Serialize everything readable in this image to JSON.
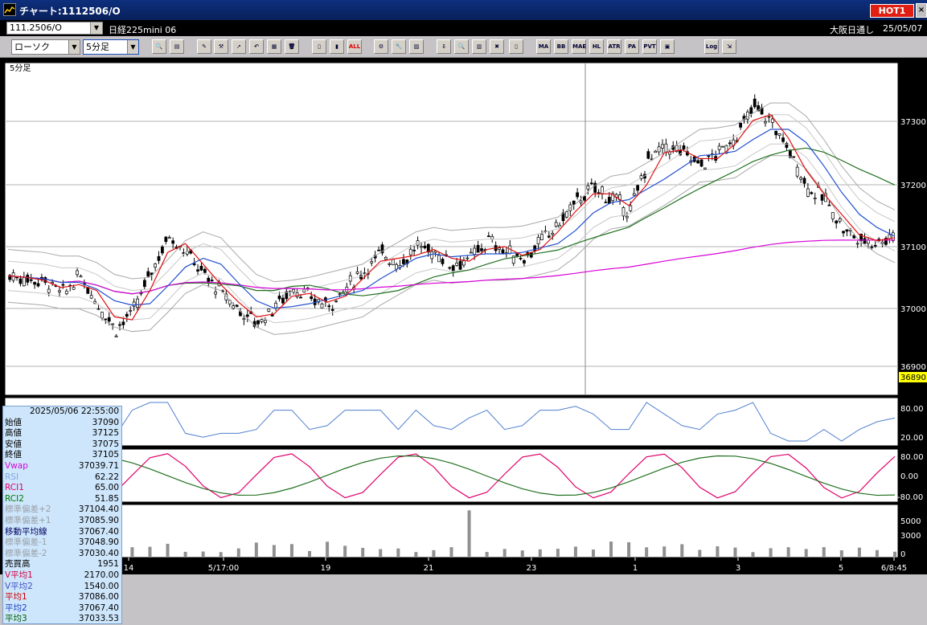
{
  "window": {
    "title": "チャート:1112506/O",
    "hot_label": "HOT1",
    "close": "×"
  },
  "symbol_bar": {
    "symbol": "111.2506/O",
    "name": "日経225mini 06",
    "market": "大阪日通し",
    "date": "25/05/07"
  },
  "toolbar": {
    "chart_type": "ローソク",
    "interval": "5分足",
    "buttons": [
      {
        "name": "zoom-icon",
        "glyph": "🔍"
      },
      {
        "name": "window-icon",
        "glyph": "▤"
      },
      {
        "name": "pen-icon",
        "glyph": "✎"
      },
      {
        "name": "tools-icon",
        "glyph": "⚒"
      },
      {
        "name": "cursor-icon",
        "glyph": "➚"
      },
      {
        "name": "undo-icon",
        "glyph": "↶"
      },
      {
        "name": "notes-icon",
        "glyph": "▦"
      },
      {
        "name": "trash-icon",
        "glyph": "🗑"
      },
      {
        "name": "candle-icon",
        "glyph": "▯"
      },
      {
        "name": "candle2-icon",
        "glyph": "▮"
      },
      {
        "name": "all-button",
        "glyph": "ALL"
      },
      {
        "name": "settings-icon",
        "glyph": "⚙"
      },
      {
        "name": "wrench-icon",
        "glyph": "🔧"
      },
      {
        "name": "palette-icon",
        "glyph": "▨"
      },
      {
        "name": "save-icon",
        "glyph": "⇩"
      },
      {
        "name": "search-icon",
        "glyph": "🔍"
      },
      {
        "name": "bars-icon",
        "glyph": "▥"
      },
      {
        "name": "mark-icon",
        "glyph": "✖"
      },
      {
        "name": "blank-icon",
        "glyph": "▯"
      },
      {
        "name": "mode-button",
        "glyph": "MA"
      },
      {
        "name": "bb-button",
        "glyph": "BB"
      },
      {
        "name": "mae-button",
        "glyph": "MAE"
      },
      {
        "name": "hl-button",
        "glyph": "HL"
      },
      {
        "name": "atr-button",
        "glyph": "ATR"
      },
      {
        "name": "pa-button",
        "glyph": "PA"
      },
      {
        "name": "pvt-button",
        "glyph": "PVT"
      },
      {
        "name": "box-icon",
        "glyph": "▣"
      },
      {
        "name": "log-button",
        "glyph": "Log"
      },
      {
        "name": "export-icon",
        "glyph": "⇲"
      }
    ]
  },
  "chart": {
    "interval_label": "5分足",
    "price_labels": [
      "37300",
      "37200",
      "37100",
      "37000",
      "36900"
    ],
    "current_price": "36890",
    "rsi_labels": [
      "80.00",
      "20.00"
    ],
    "rci_labels": [
      "80.00",
      "0.00",
      "-80.00"
    ],
    "vol_labels": [
      "5000",
      "3000",
      "0"
    ],
    "x_labels": [
      "14",
      "5/17:00",
      "19",
      "21",
      "23",
      "1",
      "3",
      "5",
      "6/8:45"
    ]
  },
  "info_panel": {
    "datetime": "2025/05/06 22:55:00",
    "rows": [
      {
        "label": "始値",
        "value": "37090",
        "color": "#000"
      },
      {
        "label": "高値",
        "value": "37125",
        "color": "#000"
      },
      {
        "label": "安値",
        "value": "37075",
        "color": "#000"
      },
      {
        "label": "終値",
        "value": "37105",
        "color": "#000"
      },
      {
        "label": "Vwap",
        "value": "37039.71",
        "color": "#d800d8"
      },
      {
        "label": "RSI",
        "value": "62.22",
        "color": "#7fa8e0"
      },
      {
        "label": "RCI1",
        "value": "65.00",
        "color": "#e0006a"
      },
      {
        "label": "RCI2",
        "value": "51.85",
        "color": "#007a00"
      },
      {
        "label": "標準偏差+2",
        "value": "37104.40",
        "color": "#9aa0a8"
      },
      {
        "label": "標準偏差+1",
        "value": "37085.90",
        "color": "#9aa0a8"
      },
      {
        "label": "移動平均線",
        "value": "37067.40",
        "color": "#000060"
      },
      {
        "label": "標準偏差-1",
        "value": "37048.90",
        "color": "#9aa0a8"
      },
      {
        "label": "標準偏差-2",
        "value": "37030.40",
        "color": "#9aa0a8"
      },
      {
        "label": "売買高",
        "value": "1951",
        "color": "#000"
      },
      {
        "label": "V平均1",
        "value": "2170.00",
        "color": "#d00040"
      },
      {
        "label": "V平均2",
        "value": "1540.00",
        "color": "#4050c0"
      },
      {
        "label": "平均1",
        "value": "37086.00",
        "color": "#d00000"
      },
      {
        "label": "平均2",
        "value": "37067.40",
        "color": "#2040c0"
      },
      {
        "label": "平均3",
        "value": "37033.53",
        "color": "#006000"
      }
    ]
  },
  "chart_data": {
    "type": "line",
    "title": "",
    "ylim": [
      36860,
      37400
    ],
    "x_ticks": [
      "14",
      "5/17:00",
      "19",
      "21",
      "23",
      "1",
      "3",
      "5",
      "6/8:45"
    ],
    "series": [
      {
        "name": "終値",
        "values": [
          37050,
          37045,
          37040,
          37020,
          37050,
          37000,
          36960,
          36990,
          37060,
          37120,
          37090,
          37050,
          37020,
          36990,
          36970,
          37000,
          37030,
          37010,
          37000,
          37030,
          37060,
          37090,
          37070,
          37100,
          37090,
          37070,
          37080,
          37110,
          37090,
          37080,
          37110,
          37140,
          37180,
          37200,
          37180,
          37160,
          37250,
          37270,
          37260,
          37240,
          37260,
          37290,
          37340,
          37310,
          37260,
          37200,
          37180,
          37130,
          37110,
          37110,
          37120
        ]
      }
    ]
  }
}
